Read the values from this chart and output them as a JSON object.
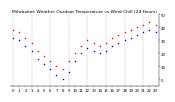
{
  "title": "Milwaukee Weather Outdoor Temperature vs Wind Chill (24 Hours)",
  "title_fontsize": 3.2,
  "bg_color": "#ffffff",
  "grid_color": "#888888",
  "temp_color": "#ff0000",
  "chill_color": "#0000ff",
  "hours": [
    0,
    1,
    2,
    3,
    4,
    5,
    6,
    7,
    8,
    9,
    10,
    11,
    12,
    13,
    14,
    15,
    16,
    17,
    18,
    19,
    20,
    21,
    22,
    23
  ],
  "temp": [
    38,
    36,
    32,
    28,
    22,
    18,
    14,
    10,
    8,
    14,
    20,
    26,
    30,
    28,
    26,
    28,
    32,
    34,
    36,
    38,
    40,
    42,
    44,
    42
  ],
  "chill": [
    32,
    30,
    26,
    22,
    16,
    12,
    8,
    3,
    0,
    6,
    14,
    20,
    24,
    22,
    20,
    22,
    26,
    28,
    30,
    32,
    34,
    36,
    38,
    36
  ],
  "ylim": [
    -5,
    50
  ],
  "yticks": [
    0,
    10,
    20,
    30,
    40,
    50
  ],
  "marker_size": 1.2,
  "tick_label_size": 2.8,
  "vline_color": "#999999",
  "vline_lw": 0.25
}
